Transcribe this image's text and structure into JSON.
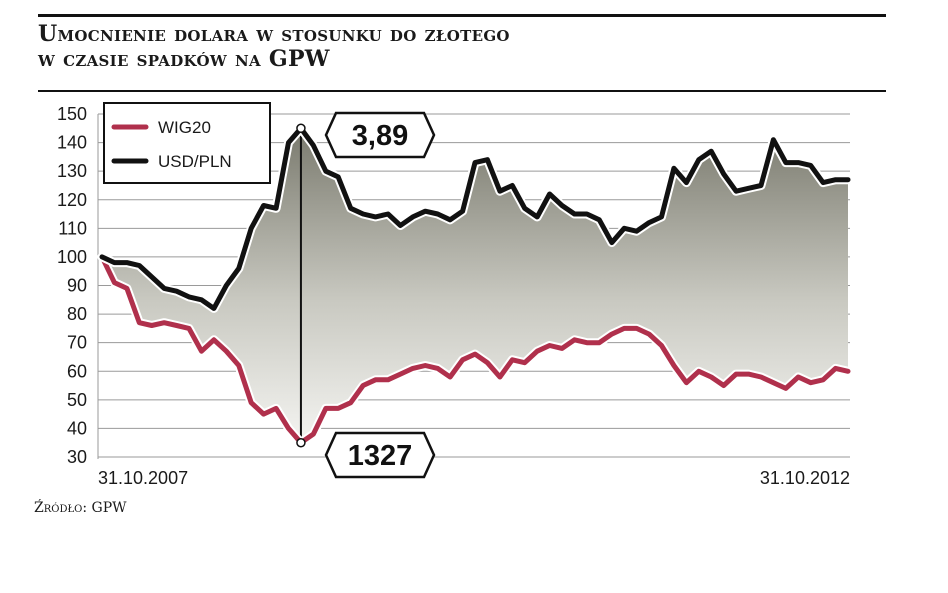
{
  "title": {
    "line1": "Umocnienie dolara w stosunku do złotego",
    "line2": "w czasie spadków na GPW"
  },
  "source": "Źródło: GPW",
  "chart_data": {
    "type": "line",
    "title": "Umocnienie dolara w stosunku do złotego w czasie spadków na GPW",
    "x_start_label": "31.10.2007",
    "x_end_label": "31.10.2012",
    "ylim": [
      30,
      150
    ],
    "yticks": [
      150,
      140,
      130,
      120,
      110,
      100,
      90,
      80,
      70,
      60,
      50,
      40,
      30
    ],
    "grid": true,
    "legend_position": "top-left",
    "series": [
      {
        "name": "WIG20",
        "color": "#b0304c",
        "values": [
          100,
          91,
          89,
          77,
          76,
          77,
          76,
          75,
          67,
          71,
          67,
          62,
          49,
          45,
          47,
          40,
          35,
          38,
          47,
          47,
          49,
          55,
          57,
          57,
          59,
          61,
          62,
          61,
          58,
          64,
          66,
          63,
          58,
          64,
          63,
          67,
          69,
          68,
          71,
          70,
          70,
          73,
          75,
          75,
          73,
          69,
          62,
          56,
          60,
          58,
          55,
          59,
          59,
          58,
          56,
          54,
          58,
          56,
          57,
          61,
          60
        ]
      },
      {
        "name": "USD/PLN",
        "color": "#111111",
        "values": [
          100,
          98,
          98,
          97,
          93,
          89,
          88,
          86,
          85,
          82,
          90,
          96,
          110,
          118,
          117,
          140,
          145,
          139,
          130,
          128,
          117,
          115,
          114,
          115,
          111,
          114,
          116,
          115,
          113,
          116,
          133,
          134,
          123,
          125,
          117,
          114,
          122,
          118,
          115,
          115,
          113,
          105,
          110,
          109,
          112,
          114,
          131,
          126,
          134,
          137,
          129,
          123,
          124,
          125,
          141,
          133,
          133,
          132,
          126,
          127,
          127
        ]
      }
    ],
    "annotations": [
      {
        "label": "3,89",
        "series": "USD/PLN",
        "point_index": 16
      },
      {
        "label": "1327",
        "series": "WIG20",
        "point_index": 16
      }
    ]
  }
}
